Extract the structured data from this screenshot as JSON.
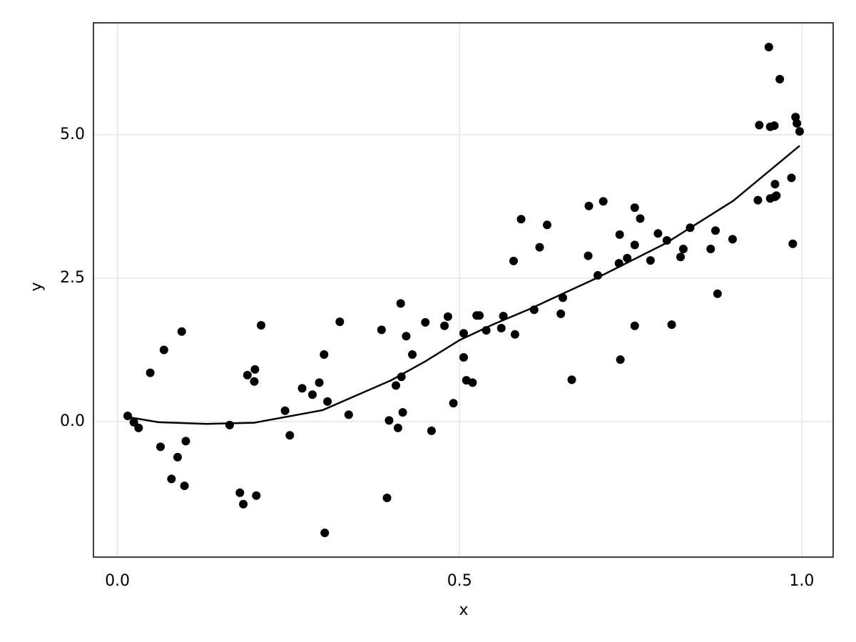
{
  "chart_data": {
    "type": "scatter",
    "xlabel": "x",
    "ylabel": "y",
    "xlim": [
      -0.035,
      1.046
    ],
    "ylim": [
      -2.363,
      6.953
    ],
    "xticks": [
      {
        "value": 0,
        "label": "0.0"
      },
      0.5,
      {
        "value": 1,
        "label": "1.0"
      }
    ],
    "yticks": [
      {
        "value": 0,
        "label": "0.0"
      },
      2.5,
      {
        "value": 5,
        "label": "5.0"
      }
    ],
    "grid": true,
    "series": [
      {
        "type": "scatter",
        "color": "#000000",
        "x": [
          0.015,
          0.024,
          0.031,
          0.048,
          0.063,
          0.068,
          0.079,
          0.088,
          0.094,
          0.098,
          0.1,
          0.164,
          0.179,
          0.184,
          0.19,
          0.201,
          0.2,
          0.203,
          0.21,
          0.245,
          0.252,
          0.27,
          0.285,
          0.295,
          0.302,
          0.303,
          0.307,
          0.325,
          0.338,
          0.386,
          0.394,
          0.397,
          0.407,
          0.41,
          0.414,
          0.415,
          0.417,
          0.422,
          0.431,
          0.45,
          0.459,
          0.478,
          0.483,
          0.491,
          0.506,
          0.506,
          0.51,
          0.519,
          0.525,
          0.529,
          0.539,
          0.561,
          0.564,
          0.579,
          0.581,
          0.59,
          0.609,
          0.617,
          0.628,
          0.648,
          0.651,
          0.664,
          0.688,
          0.689,
          0.702,
          0.71,
          0.733,
          0.734,
          0.735,
          0.745,
          0.756,
          0.756,
          0.756,
          0.764,
          0.779,
          0.79,
          0.803,
          0.81,
          0.823,
          0.827,
          0.837,
          0.867,
          0.874,
          0.877,
          0.899,
          0.936,
          0.938,
          0.952,
          0.954,
          0.954,
          0.96,
          0.961,
          0.961,
          0.963,
          0.968,
          0.985,
          0.987,
          0.991,
          0.993,
          0.997
        ],
        "values": [
          0.1,
          -0.01,
          -0.11,
          0.85,
          -0.44,
          1.25,
          -1.0,
          -0.62,
          1.57,
          -1.12,
          -0.34,
          -0.06,
          -1.24,
          -1.44,
          0.81,
          0.91,
          0.7,
          -1.29,
          1.68,
          0.19,
          -0.24,
          0.58,
          0.47,
          0.68,
          1.17,
          -1.94,
          0.35,
          1.74,
          0.12,
          1.6,
          -1.33,
          0.02,
          0.63,
          -0.11,
          2.06,
          0.78,
          0.16,
          1.49,
          1.17,
          1.73,
          -0.16,
          1.67,
          1.83,
          0.32,
          1.54,
          1.12,
          0.72,
          0.68,
          1.85,
          1.85,
          1.59,
          1.63,
          1.84,
          2.8,
          1.52,
          3.53,
          1.95,
          3.04,
          3.43,
          1.88,
          2.16,
          0.73,
          2.89,
          3.76,
          2.55,
          3.84,
          2.76,
          3.26,
          1.08,
          2.85,
          3.73,
          3.08,
          1.67,
          3.54,
          2.81,
          3.28,
          3.16,
          1.69,
          2.87,
          3.01,
          3.38,
          3.01,
          3.33,
          2.23,
          3.18,
          3.86,
          5.17,
          6.53,
          5.14,
          3.89,
          5.16,
          4.14,
          3.92,
          3.94,
          5.97,
          4.25,
          3.1,
          5.31,
          5.2,
          5.06
        ]
      },
      {
        "type": "line",
        "color": "#000000",
        "x": [
          0.015,
          0.06,
          0.13,
          0.2,
          0.3,
          0.4,
          0.45,
          0.5,
          0.55,
          0.6,
          0.7,
          0.8,
          0.9,
          0.997
        ],
        "values": [
          0.08,
          -0.01,
          -0.04,
          -0.02,
          0.2,
          0.72,
          1.05,
          1.42,
          1.7,
          1.95,
          2.5,
          3.1,
          3.85,
          4.81
        ]
      }
    ]
  }
}
